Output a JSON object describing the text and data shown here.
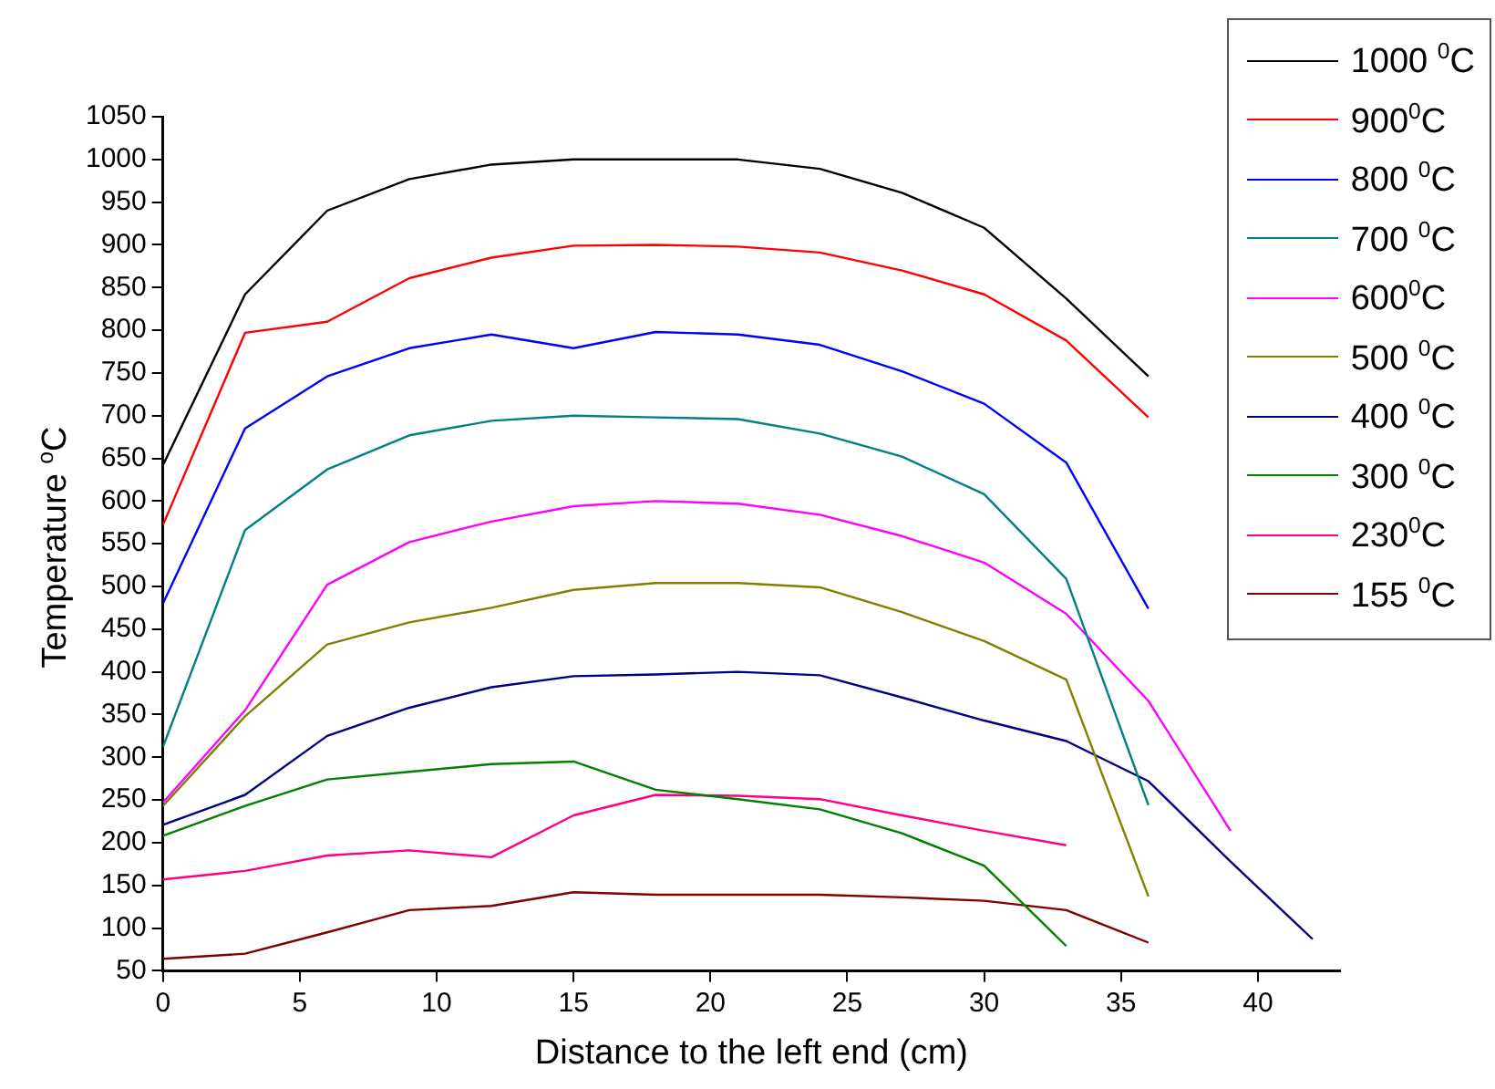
{
  "chart_data": {
    "type": "line",
    "xlabel": "Distance to the left end (cm)",
    "ylabel": "Temperature $^{o}$C",
    "xlim": [
      0,
      43
    ],
    "xticks": [
      0,
      5,
      10,
      15,
      20,
      25,
      30,
      35,
      40
    ],
    "ylim": [
      50,
      1050
    ],
    "yticks": [
      50,
      100,
      150,
      200,
      250,
      300,
      350,
      400,
      450,
      500,
      550,
      600,
      650,
      700,
      750,
      800,
      850,
      900,
      950,
      1000,
      1050
    ],
    "grid": false,
    "legend": "top right",
    "marker": "none",
    "line_style": "solid",
    "series": [
      {
        "name": "1000 $^{0}$C",
        "color": "#000000",
        "x": [
          0,
          3,
          6,
          9,
          12,
          15,
          18,
          21,
          24,
          27,
          30,
          33,
          36
        ],
        "values": [
          642,
          842,
          940,
          977,
          994,
          1000,
          1000,
          1000,
          989,
          961,
          920,
          837,
          746
        ]
      },
      {
        "name": "900$^{0}$C",
        "color": "#ff0000",
        "x": [
          0,
          3,
          6,
          9,
          12,
          15,
          18,
          21,
          24,
          27,
          30,
          33,
          36
        ],
        "values": [
          572,
          797,
          810,
          861,
          885,
          899,
          900,
          898,
          891,
          870,
          842,
          788,
          698
        ]
      },
      {
        "name": "800 $^{0}$C",
        "color": "#0000ff",
        "x": [
          0,
          3,
          6,
          9,
          12,
          15,
          18,
          21,
          24,
          27,
          30,
          33,
          36
        ],
        "values": [
          480,
          685,
          746,
          779,
          795,
          779,
          798,
          795,
          783,
          752,
          714,
          645,
          474
        ]
      },
      {
        "name": "700 $^{0}$C",
        "color": "#008080",
        "x": [
          0,
          3,
          6,
          9,
          12,
          15,
          18,
          21,
          24,
          27,
          30,
          33,
          36
        ],
        "values": [
          312,
          566,
          637,
          677,
          694,
          700,
          698,
          696,
          679,
          652,
          608,
          509,
          244
        ]
      },
      {
        "name": "600$^{0}$C",
        "color": "#ff00ff",
        "x": [
          0,
          3,
          6,
          9,
          12,
          15,
          18,
          21,
          24,
          27,
          30,
          33,
          36,
          39
        ],
        "values": [
          247,
          355,
          502,
          552,
          576,
          594,
          600,
          597,
          584,
          559,
          528,
          468,
          366,
          214
        ]
      },
      {
        "name": "500 $^{0}$C",
        "color": "#808000",
        "x": [
          0,
          3,
          6,
          9,
          12,
          15,
          18,
          21,
          24,
          27,
          30,
          33,
          36
        ],
        "values": [
          243,
          348,
          432,
          458,
          475,
          496,
          504,
          504,
          499,
          470,
          436,
          391,
          137
        ]
      },
      {
        "name": "400 $^{0}$C",
        "color": "#000080",
        "x": [
          0,
          3,
          6,
          9,
          12,
          15,
          18,
          21,
          24,
          27,
          30,
          33,
          36,
          39,
          42
        ],
        "values": [
          221,
          256,
          325,
          358,
          382,
          395,
          397,
          400,
          396,
          370,
          343,
          319,
          272,
          178,
          87
        ]
      },
      {
        "name": "300 $^{0}$C",
        "color": "#008000",
        "x": [
          0,
          3,
          6,
          9,
          12,
          15,
          18,
          21,
          24,
          27,
          30,
          33
        ],
        "values": [
          208,
          243,
          274,
          283,
          292,
          295,
          262,
          251,
          239,
          211,
          173,
          79
        ]
      },
      {
        "name": "230$^{0}$C",
        "color": "#ff0080",
        "x": [
          0,
          3,
          6,
          9,
          12,
          15,
          18,
          21,
          24,
          27,
          30,
          33
        ],
        "values": [
          157,
          167,
          185,
          191,
          183,
          232,
          256,
          255,
          251,
          232,
          214,
          197
        ]
      },
      {
        "name": "155 $^{0}$C",
        "color": "#800000",
        "x": [
          0,
          3,
          6,
          9,
          12,
          15,
          18,
          21,
          24,
          27,
          30,
          33,
          36
        ],
        "values": [
          64,
          70,
          95,
          121,
          126,
          142,
          139,
          139,
          139,
          136,
          132,
          121,
          83
        ]
      }
    ]
  }
}
